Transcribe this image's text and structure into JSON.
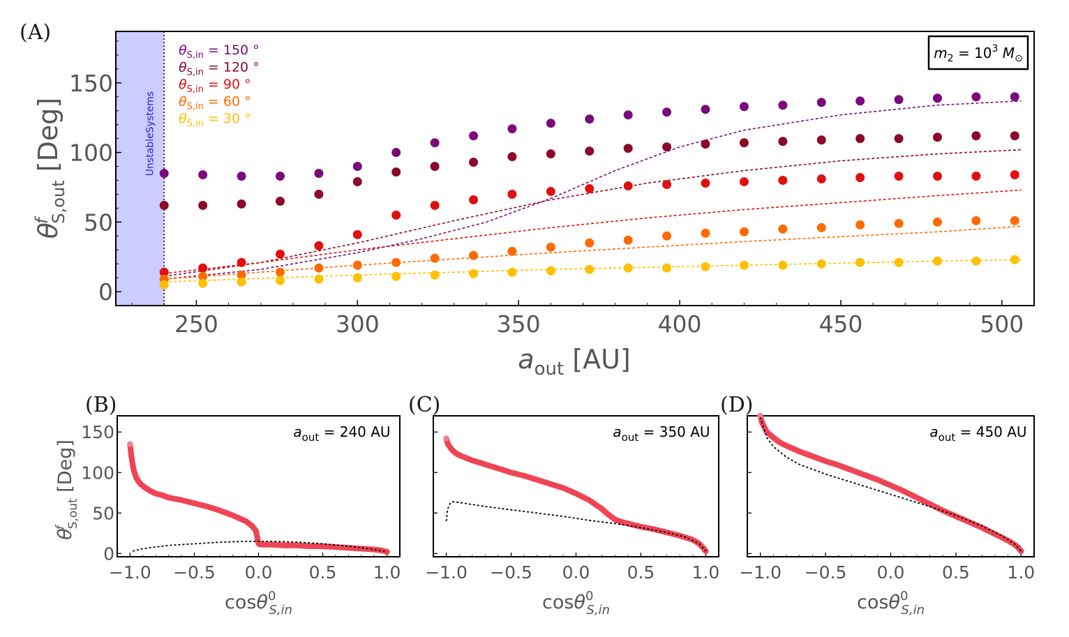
{
  "chart_data": [
    {
      "id": "A",
      "panel_label": "(A)",
      "type": "scatter",
      "xlabel": "a_out [AU]",
      "ylabel": "θ^f_S,out [Deg]",
      "xlim": [
        225,
        510
      ],
      "ylim": [
        -10,
        187
      ],
      "xticks": [
        250,
        300,
        350,
        400,
        450,
        500
      ],
      "yticks": [
        0,
        50,
        100,
        150
      ],
      "x": [
        240,
        252,
        264,
        276,
        288,
        300,
        312,
        324,
        336,
        348,
        360,
        372,
        384,
        396,
        408,
        420,
        432,
        444,
        456,
        468,
        480,
        492,
        504
      ],
      "series": [
        {
          "name": "θS,in = 150 °",
          "color": "#7b0a7b",
          "values": [
            85,
            84,
            83,
            83,
            85,
            90,
            100,
            107,
            112,
            117,
            121,
            124,
            127,
            129,
            131,
            133,
            134,
            136,
            137,
            138,
            139,
            140,
            140
          ],
          "curve_x": [
            240,
            270,
            300,
            320,
            340,
            360,
            380,
            400,
            420,
            450,
            480,
            506
          ],
          "curve_y": [
            9,
            16,
            28,
            38,
            50,
            67,
            87,
            104,
            116,
            127,
            134,
            137
          ]
        },
        {
          "name": "θS,in = 120 °",
          "color": "#8b0a2a",
          "values": [
            62,
            62,
            63,
            65,
            70,
            79,
            86,
            90,
            93,
            97,
            99,
            101,
            103,
            104,
            106,
            107,
            108,
            109,
            110,
            110,
            111,
            112,
            112
          ],
          "curve_x": [
            240,
            270,
            300,
            330,
            360,
            390,
            420,
            450,
            480,
            506
          ],
          "curve_y": [
            11,
            21,
            35,
            51,
            66,
            78,
            87,
            94,
            99,
            102
          ]
        },
        {
          "name": "θS,in = 90 °",
          "color": "#e01010",
          "values": [
            14,
            17,
            21,
            27,
            33,
            41,
            55,
            62,
            66,
            70,
            72,
            74,
            76,
            77,
            78,
            79,
            80,
            81,
            82,
            83,
            83,
            83,
            84
          ],
          "curve_x": [
            240,
            270,
            300,
            330,
            360,
            390,
            420,
            450,
            480,
            506
          ],
          "curve_y": [
            13,
            21,
            30,
            38,
            46,
            53,
            59,
            64,
            69,
            73
          ]
        },
        {
          "name": "θS,in = 60 °",
          "color": "#ff6a00",
          "values": [
            9,
            11,
            12,
            14,
            17,
            19,
            21,
            24,
            26,
            29,
            32,
            35,
            37,
            40,
            42,
            43,
            45,
            46,
            48,
            49,
            50,
            51,
            51
          ],
          "curve_x": [
            240,
            300,
            360,
            420,
            480,
            506
          ],
          "curve_y": [
            9,
            19,
            28,
            36,
            43,
            47
          ]
        },
        {
          "name": "θS,in = 30 °",
          "color": "#ffc000",
          "values": [
            5,
            6,
            7,
            8,
            9,
            10,
            11,
            12,
            13,
            14,
            15,
            16,
            17,
            17,
            18,
            19,
            19,
            20,
            21,
            21,
            22,
            22,
            23
          ],
          "curve_x": [
            240,
            300,
            360,
            420,
            480,
            506
          ],
          "curve_y": [
            7,
            12,
            16,
            19,
            22,
            23
          ]
        }
      ],
      "band_label": "UnstableSystems",
      "band_range": [
        225,
        240
      ],
      "annotation": "m2 = 10^3 M⊙"
    },
    {
      "id": "B",
      "panel_label": "(B)",
      "type": "scatter",
      "xlabel": "cosθ^0_S,in",
      "ylabel": "θ^f_S,out [Deg]",
      "xlim": [
        -1.1,
        1.1
      ],
      "ylim": [
        -4,
        170
      ],
      "xticks": [
        "−1.0",
        "−0.5",
        "0.0",
        "0.5",
        "1.0"
      ],
      "yticks": [
        0,
        50,
        100,
        150
      ],
      "annotation": "a_out = 240 AU",
      "points_x": [
        -1.0,
        -0.99,
        -0.98,
        -0.97,
        -0.95,
        -0.92,
        -0.88,
        -0.84,
        -0.8,
        -0.75,
        -0.7,
        -0.6,
        -0.5,
        -0.4,
        -0.3,
        -0.2,
        -0.1,
        -0.05,
        -0.02,
        0.0,
        0.02,
        0.1,
        0.2,
        0.3,
        0.4,
        0.5,
        0.6,
        0.7,
        0.8,
        0.9,
        0.95,
        0.98,
        1.0
      ],
      "points_y": [
        135,
        120,
        110,
        102,
        93,
        86,
        81,
        77,
        74,
        72,
        69,
        66,
        62,
        58,
        53,
        47,
        40,
        34,
        28,
        12,
        11,
        11,
        10,
        10,
        9,
        9,
        8,
        7,
        6,
        5,
        4,
        3,
        2
      ],
      "curve_x": [
        -0.98,
        -0.9,
        -0.7,
        -0.5,
        -0.3,
        -0.1,
        0.1,
        0.3,
        0.5,
        0.7,
        0.9,
        1.0
      ],
      "curve_y": [
        3,
        6,
        10,
        12,
        14,
        15,
        15,
        14,
        12,
        9,
        5,
        2
      ]
    },
    {
      "id": "C",
      "panel_label": "(C)",
      "type": "scatter",
      "xlabel": "cosθ^0_S,in",
      "ylabel": "",
      "xlim": [
        -1.1,
        1.1
      ],
      "ylim": [
        -4,
        170
      ],
      "xticks": [
        "−1.0",
        "−0.5",
        "0.0",
        "0.5",
        "1.0"
      ],
      "yticks": [],
      "annotation": "a_out = 350 AU",
      "points_x": [
        -1.0,
        -0.99,
        -0.97,
        -0.95,
        -0.92,
        -0.88,
        -0.8,
        -0.7,
        -0.6,
        -0.5,
        -0.4,
        -0.3,
        -0.2,
        -0.1,
        0.0,
        0.1,
        0.2,
        0.25,
        0.3,
        0.35,
        0.4,
        0.5,
        0.6,
        0.7,
        0.8,
        0.9,
        0.95,
        0.98,
        1.0
      ],
      "points_y": [
        142,
        136,
        131,
        127,
        123,
        120,
        115,
        110,
        105,
        100,
        96,
        91,
        86,
        81,
        74,
        66,
        55,
        48,
        42,
        39,
        37,
        33,
        30,
        26,
        22,
        17,
        12,
        7,
        3
      ],
      "curve_x": [
        -1.0,
        -0.99,
        -0.97,
        -0.95,
        -0.9,
        -0.7,
        -0.5,
        -0.3,
        -0.1,
        0.1,
        0.3,
        0.5,
        0.7,
        0.85,
        0.95,
        1.0
      ],
      "curve_y": [
        40,
        55,
        62,
        64,
        63,
        58,
        54,
        50,
        46,
        41,
        37,
        32,
        26,
        20,
        12,
        3
      ]
    },
    {
      "id": "D",
      "panel_label": "(D)",
      "type": "scatter",
      "xlabel": "cosθ^0_S,in",
      "ylabel": "",
      "xlim": [
        -1.1,
        1.1
      ],
      "ylim": [
        -4,
        170
      ],
      "xticks": [
        "−1.0",
        "−0.5",
        "0.0",
        "0.5",
        "1.0"
      ],
      "yticks": [],
      "annotation": "a_out = 450 AU",
      "points_x": [
        -1.0,
        -0.99,
        -0.97,
        -0.95,
        -0.9,
        -0.85,
        -0.8,
        -0.7,
        -0.6,
        -0.5,
        -0.4,
        -0.3,
        -0.2,
        -0.1,
        0.0,
        0.1,
        0.2,
        0.3,
        0.4,
        0.5,
        0.6,
        0.7,
        0.8,
        0.9,
        0.95,
        0.98,
        1.0
      ],
      "points_y": [
        170,
        163,
        156,
        150,
        143,
        137,
        133,
        126,
        120,
        114,
        109,
        103,
        97,
        91,
        84,
        77,
        69,
        61,
        53,
        46,
        39,
        32,
        24,
        16,
        11,
        7,
        3
      ],
      "curve_x": [
        -1.0,
        -0.95,
        -0.9,
        -0.8,
        -0.7,
        -0.5,
        -0.3,
        -0.1,
        0.1,
        0.3,
        0.5,
        0.7,
        0.85,
        0.95,
        1.0
      ],
      "curve_y": [
        168,
        143,
        132,
        119,
        110,
        98,
        88,
        78,
        68,
        58,
        47,
        34,
        22,
        12,
        3
      ]
    }
  ]
}
